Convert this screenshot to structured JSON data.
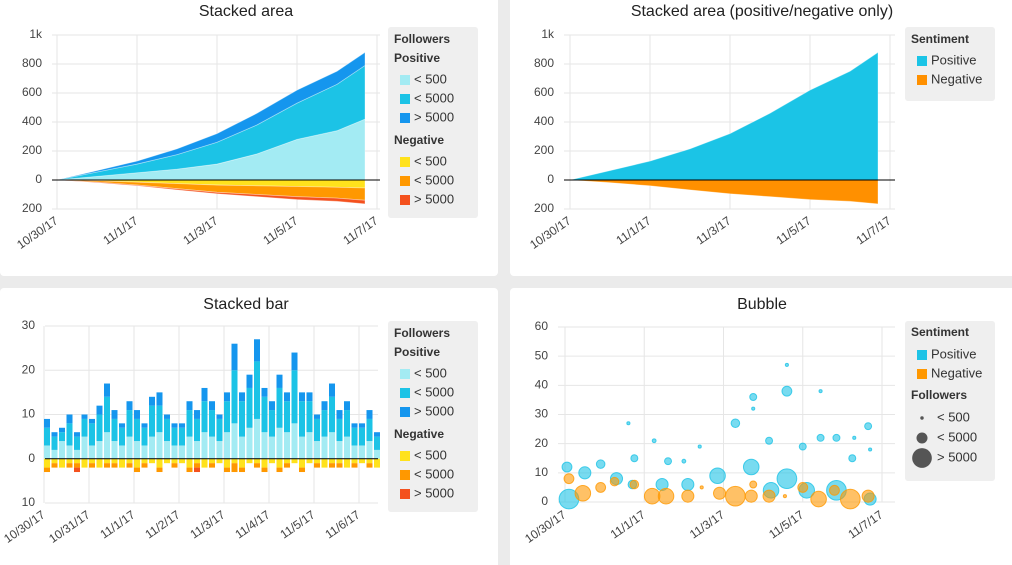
{
  "chart_data": [
    {
      "type": "stacked-area",
      "title": "Stacked area",
      "x": [
        0,
        1,
        2,
        3,
        4,
        5,
        6,
        7,
        7.7
      ],
      "xlim": [
        0,
        8
      ],
      "xticks": [
        {
          "value": 0,
          "label": "10/30/17"
        },
        {
          "value": 2,
          "label": "11/1/17"
        },
        {
          "value": 4,
          "label": "11/3/17"
        },
        {
          "value": 6,
          "label": "11/5/17"
        },
        {
          "value": 8,
          "label": "11/7/17"
        }
      ],
      "ylim": [
        -200,
        1000
      ],
      "yticks": [
        {
          "value": 1000,
          "label": "1k"
        },
        800,
        600,
        400,
        200,
        0,
        {
          "value": -200,
          "label": "200"
        }
      ],
      "grid": true,
      "legend_title": "Followers",
      "series_groups": [
        {
          "name": "Positive",
          "series": [
            {
              "name": "< 500",
              "color": "#a3ebf3",
              "values": [
                0,
                25,
                50,
                75,
                110,
                180,
                280,
                340,
                420
              ]
            },
            {
              "name": "< 5000",
              "color": "#1cc3e6",
              "values": [
                0,
                30,
                60,
                100,
                150,
                200,
                250,
                320,
                370
              ]
            },
            {
              "name": "> 5000",
              "color": "#1596ee",
              "values": [
                0,
                10,
                20,
                40,
                60,
                80,
                90,
                90,
                90
              ]
            }
          ]
        },
        {
          "name": "Negative",
          "series": [
            {
              "name": "< 500",
              "color": "#ffe21c",
              "values": [
                0,
                -5,
                -15,
                -25,
                -35,
                -40,
                -45,
                -50,
                -55
              ]
            },
            {
              "name": "< 5000",
              "color": "#ff9800",
              "values": [
                0,
                -10,
                -20,
                -35,
                -50,
                -60,
                -70,
                -75,
                -85
              ]
            },
            {
              "name": "> 5000",
              "color": "#f4511e",
              "values": [
                0,
                -3,
                -5,
                -8,
                -10,
                -15,
                -20,
                -22,
                -25
              ]
            }
          ]
        }
      ]
    },
    {
      "type": "stacked-area",
      "title": "Stacked area (positive/negative only)",
      "x": [
        0,
        1,
        2,
        3,
        4,
        5,
        6,
        7,
        7.7
      ],
      "xlim": [
        0,
        8
      ],
      "xticks": [
        {
          "value": 0,
          "label": "10/30/17"
        },
        {
          "value": 2,
          "label": "11/1/17"
        },
        {
          "value": 4,
          "label": "11/3/17"
        },
        {
          "value": 6,
          "label": "11/5/17"
        },
        {
          "value": 8,
          "label": "11/7/17"
        }
      ],
      "ylim": [
        -200,
        1000
      ],
      "yticks": [
        {
          "value": 1000,
          "label": "1k"
        },
        800,
        600,
        400,
        200,
        0,
        {
          "value": -200,
          "label": "200"
        }
      ],
      "grid": true,
      "legend_title": "Sentiment",
      "series": [
        {
          "name": "Positive",
          "color": "#1bc4e6",
          "values": [
            0,
            65,
            130,
            215,
            320,
            460,
            620,
            750,
            880
          ]
        },
        {
          "name": "Negative",
          "color": "#ff9000",
          "values": [
            0,
            -18,
            -40,
            -68,
            -95,
            -115,
            -135,
            -147,
            -165
          ]
        }
      ]
    },
    {
      "type": "stacked-bar",
      "title": "Stacked bar",
      "categories": [
        "10/30/17",
        null,
        null,
        null,
        null,
        null,
        "10/31/17",
        null,
        null,
        null,
        null,
        null,
        "11/1/17",
        null,
        null,
        null,
        null,
        null,
        "11/2/17",
        null,
        null,
        null,
        null,
        null,
        "11/3/17",
        null,
        null,
        null,
        null,
        null,
        "11/4/17",
        null,
        null,
        null,
        null,
        null,
        "11/5/17",
        null,
        null,
        null,
        null,
        null,
        "11/6/17",
        null,
        null
      ],
      "ylim": [
        -10,
        30
      ],
      "yticks": [
        30,
        20,
        10,
        0,
        {
          "value": -10,
          "label": "10"
        }
      ],
      "grid": true,
      "legend_title": "Followers",
      "series_groups": [
        {
          "name": "Positive",
          "series": [
            {
              "name": "< 500",
              "color": "#a3ebf3",
              "values": [
                3,
                2,
                4,
                3,
                2,
                5,
                3,
                4,
                6,
                4,
                3,
                5,
                4,
                3,
                5,
                6,
                4,
                3,
                3,
                5,
                4,
                6,
                5,
                4,
                6,
                8,
                5,
                7,
                9,
                6,
                5,
                7,
                6,
                8,
                5,
                6,
                4,
                5,
                6,
                4,
                5,
                3,
                3,
                4,
                2
              ]
            },
            {
              "name": "< 5000",
              "color": "#1cc3e6",
              "values": [
                4,
                3,
                2,
                5,
                3,
                4,
                5,
                6,
                8,
                5,
                4,
                6,
                5,
                4,
                7,
                6,
                5,
                4,
                4,
                6,
                5,
                7,
                6,
                5,
                7,
                12,
                8,
                9,
                13,
                8,
                6,
                9,
                7,
                12,
                8,
                7,
                5,
                6,
                8,
                5,
                6,
                4,
                4,
                5,
                3
              ]
            },
            {
              "name": "> 5000",
              "color": "#1596ee",
              "values": [
                2,
                1,
                1,
                2,
                1,
                1,
                1,
                2,
                3,
                2,
                1,
                2,
                2,
                1,
                2,
                3,
                1,
                1,
                1,
                2,
                2,
                3,
                2,
                1,
                2,
                6,
                2,
                3,
                5,
                2,
                2,
                3,
                2,
                4,
                2,
                2,
                1,
                2,
                3,
                2,
                2,
                1,
                1,
                2,
                1
              ]
            }
          ]
        },
        {
          "name": "Negative",
          "series": [
            {
              "name": "< 500",
              "color": "#ffe21c",
              "values": [
                -2,
                -1,
                -2,
                -1,
                -1,
                -2,
                -1,
                -2,
                -1,
                -1,
                -2,
                -1,
                -2,
                -1,
                -1,
                -2,
                -1,
                -1,
                -1,
                -2,
                -1,
                -2,
                -1,
                -1,
                -2,
                -1,
                -2,
                -1,
                -1,
                -2,
                -1,
                -2,
                -1,
                -1,
                -2,
                -1,
                -1,
                -2,
                -1,
                -1,
                -2,
                -1,
                -1,
                -1,
                -2
              ]
            },
            {
              "name": "< 5000",
              "color": "#ff9800",
              "values": [
                -1,
                -1,
                0,
                -1,
                -1,
                0,
                -1,
                0,
                -1,
                -1,
                0,
                -1,
                -1,
                -1,
                0,
                -1,
                0,
                -1,
                0,
                -1,
                -1,
                0,
                -1,
                0,
                -1,
                -2,
                -1,
                0,
                -1,
                -1,
                0,
                -1,
                -1,
                0,
                -1,
                0,
                -1,
                0,
                -1,
                -1,
                0,
                -1,
                0,
                -1,
                0
              ]
            },
            {
              "name": "> 5000",
              "color": "#f4511e",
              "values": [
                0,
                0,
                0,
                0,
                -1,
                0,
                0,
                0,
                0,
                0,
                0,
                0,
                0,
                0,
                0,
                0,
                0,
                0,
                0,
                0,
                -1,
                0,
                0,
                0,
                0,
                0,
                0,
                0,
                0,
                0,
                0,
                0,
                0,
                0,
                0,
                0,
                0,
                0,
                0,
                0,
                0,
                0,
                0,
                0,
                0
              ]
            }
          ]
        }
      ]
    },
    {
      "type": "bubble",
      "title": "Bubble",
      "xlim": [
        0,
        8
      ],
      "xticks": [
        {
          "value": 0,
          "label": "10/30/17"
        },
        {
          "value": 2,
          "label": "11/1/17"
        },
        {
          "value": 4,
          "label": "11/3/17"
        },
        {
          "value": 6,
          "label": "11/5/17"
        },
        {
          "value": 8,
          "label": "11/7/17"
        }
      ],
      "ylim": [
        0,
        60
      ],
      "yticks": [
        60,
        50,
        40,
        30,
        20,
        10,
        0
      ],
      "grid": true,
      "legend_title": "Sentiment",
      "size_legend_title": "Followers",
      "size_legend": [
        {
          "label": "< 500",
          "value": 250
        },
        {
          "label": "< 5000",
          "value": 2500
        },
        {
          "label": "> 5000",
          "value": 8000
        }
      ],
      "series": [
        {
          "name": "Positive",
          "color": "#1ec3e6",
          "x": [
            0.1,
            0.05,
            0.5,
            0.9,
            1.6,
            1.3,
            1.7,
            1.75,
            2.25,
            2.45,
            2.6,
            3.0,
            3.1,
            3.4,
            3.85,
            4.3,
            4.7,
            4.75,
            4.75,
            5.15,
            5.2,
            5.6,
            5.6,
            5.6,
            6.0,
            6.1,
            6.45,
            6.45,
            6.85,
            6.85,
            7.25,
            7.3,
            7.65,
            7.7,
            7.7
          ],
          "values": [
            1,
            12,
            10,
            13,
            27,
            8,
            6,
            15,
            21,
            6,
            14,
            14,
            6,
            19,
            9,
            27,
            12,
            36,
            32,
            21,
            4,
            38,
            8,
            47,
            19,
            4,
            22,
            38,
            22,
            4,
            15,
            22,
            26,
            18,
            1
          ],
          "followers": [
            8000,
            2000,
            3000,
            1500,
            200,
            3000,
            1500,
            1000,
            300,
            3000,
            1000,
            300,
            3000,
            200,
            5000,
            1500,
            5000,
            1000,
            200,
            1000,
            5000,
            2000,
            8000,
            200,
            1000,
            5000,
            1000,
            200,
            1000,
            8000,
            1000,
            200,
            1000,
            200,
            3000
          ]
        },
        {
          "name": "Negative",
          "color": "#ff9800",
          "x": [
            0.1,
            0.45,
            0.9,
            1.25,
            1.75,
            2.2,
            2.55,
            3.1,
            3.45,
            3.9,
            4.3,
            4.7,
            4.75,
            5.15,
            5.55,
            6.0,
            6.4,
            6.8,
            7.2,
            7.65
          ],
          "values": [
            8,
            3,
            5,
            7,
            6,
            2,
            2,
            2,
            5,
            3,
            2,
            2,
            6,
            2,
            2,
            5,
            1,
            4,
            1,
            2
          ],
          "followers": [
            2000,
            5000,
            2000,
            1500,
            1500,
            5000,
            5000,
            3000,
            200,
            3000,
            8000,
            3000,
            1000,
            3000,
            200,
            2000,
            5000,
            2000,
            8000,
            3000
          ]
        }
      ]
    }
  ]
}
